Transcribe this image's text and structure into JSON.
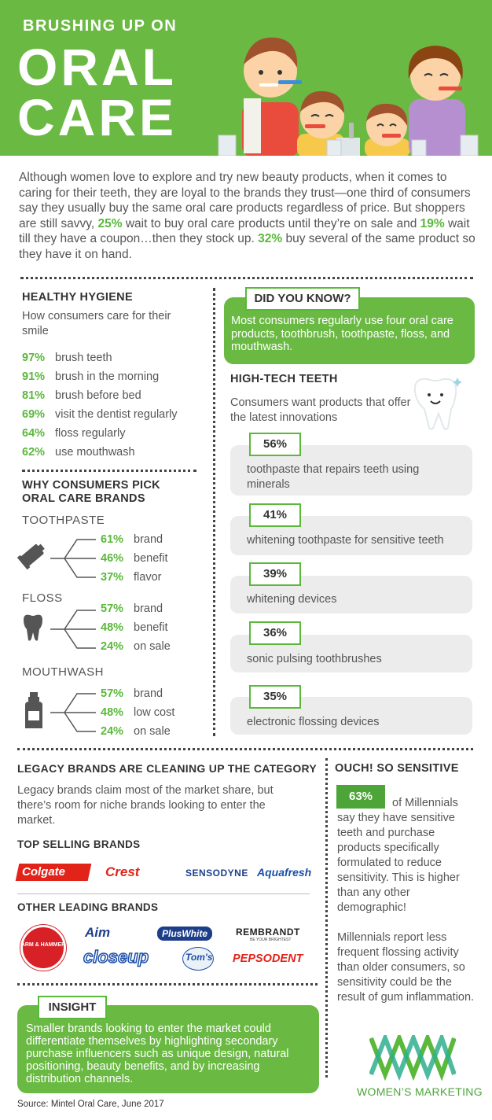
{
  "header": {
    "subtitle": "BRUSHING UP ON",
    "title_line1": "ORAL",
    "title_line2": "CARE"
  },
  "intro": {
    "p1": "Although women love to explore and try new beauty products, when it comes to caring for their teeth, they are loyal to the brands they trust—one third of consumers say they usually buy the same oral care products regardless of price. But shoppers are still savvy, ",
    "s1": "25%",
    "p2": " wait to buy oral care products until they’re on sale and ",
    "s2": "19%",
    "p3": " wait till they have a coupon…then they stock up. ",
    "s3": "32%",
    "p4": " buy several of the same product so they have it on hand."
  },
  "hygiene": {
    "title": "HEALTHY HYGIENE",
    "subtitle": "How consumers care for their smile",
    "items": [
      {
        "pct": "97%",
        "label": "brush teeth"
      },
      {
        "pct": "91%",
        "label": "brush in the morning"
      },
      {
        "pct": "81%",
        "label": "brush before bed"
      },
      {
        "pct": "69%",
        "label": "visit the dentist regularly"
      },
      {
        "pct": "64%",
        "label": "floss regularly"
      },
      {
        "pct": "62%",
        "label": "use mouthwash"
      }
    ]
  },
  "pick": {
    "title1": "WHY CONSUMERS PICK",
    "title2": "ORAL CARE BRANDS",
    "groups": [
      {
        "name": "TOOTHPASTE",
        "icon": "toothpaste-icon",
        "rows": [
          {
            "pct": "61%",
            "label": "brand"
          },
          {
            "pct": "46%",
            "label": "benefit"
          },
          {
            "pct": "37%",
            "label": "flavor"
          }
        ]
      },
      {
        "name": "FLOSS",
        "icon": "tooth-icon",
        "rows": [
          {
            "pct": "57%",
            "label": "brand"
          },
          {
            "pct": "48%",
            "label": "benefit"
          },
          {
            "pct": "24%",
            "label": "on sale"
          }
        ]
      },
      {
        "name": "MOUTHWASH",
        "icon": "mouthwash-icon",
        "rows": [
          {
            "pct": "57%",
            "label": "brand"
          },
          {
            "pct": "48%",
            "label": "low cost"
          },
          {
            "pct": "24%",
            "label": "on sale"
          }
        ]
      }
    ]
  },
  "didyouknow": {
    "title": "DID YOU KNOW?",
    "text": "Most consumers regularly use four oral care products, toothbrush, toothpaste, floss, and mouthwash."
  },
  "hightech": {
    "title": "HIGH-TECH TEETH",
    "subtitle": "Consumers want products that offer the latest innovations",
    "items": [
      {
        "pct": "56%",
        "label": "toothpaste that repairs teeth using minerals"
      },
      {
        "pct": "41%",
        "label": "whitening toothpaste for sensitive teeth"
      },
      {
        "pct": "39%",
        "label": "whitening devices"
      },
      {
        "pct": "36%",
        "label": "sonic pulsing toothbrushes"
      },
      {
        "pct": "35%",
        "label": "electronic flossing devices"
      }
    ]
  },
  "legacy": {
    "title": "LEGACY BRANDS ARE CLEANING UP THE CATEGORY",
    "text": "Legacy brands claim most of the market share, but there’s room for niche brands looking to enter the market.",
    "top_title": "TOP SELLING BRANDS",
    "top_brands": [
      "Colgate",
      "Crest",
      "SENSODYNE",
      "Aquafresh"
    ],
    "other_title": "OTHER LEADING BRANDS",
    "other_brands": [
      "ARM & HAMMER",
      "Aim",
      "PlusWhite",
      "REMBRANDT",
      "BE YOUR BRIGHTEST",
      "closeup",
      "Tom's",
      "PEPSODENT"
    ]
  },
  "sensitive": {
    "title": "OUCH! SO SENSITIVE",
    "pct": "63%",
    "text1a": "of Millennials",
    "text1b": "say they have sensitive teeth and purchase products specifically formulated to reduce sensitivity. This is higher than any other demographic!",
    "text2": "Millennials report less frequent flossing activity than older consumers, so sensitivity could be the result of gum inflammation."
  },
  "insight": {
    "title": "INSIGHT",
    "text": "Smaller brands looking to enter the market could differentiate themselves by highlighting secondary purchase influencers such as unique design, natural positioning, beauty benefits, and by increasing distribution channels."
  },
  "footer": {
    "source": "Source: Mintel Oral Care, June 2017",
    "logo_text": "WOMEN’S MARKETING"
  },
  "colors": {
    "green": "#6ab943",
    "pct_green": "#5ab83b",
    "gray_bar": "#ececec"
  }
}
